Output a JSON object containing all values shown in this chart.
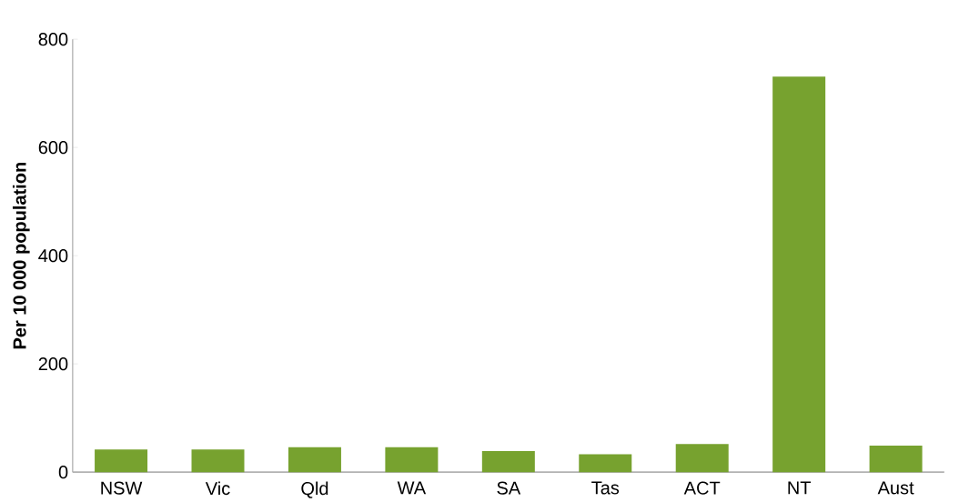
{
  "chart_data": {
    "type": "bar",
    "ylabel": "Per 10 000 population",
    "categories": [
      "NSW",
      "Vic",
      "Qld",
      "WA",
      "SA",
      "Tas",
      "ACT",
      "NT",
      "Aust"
    ],
    "values": [
      42,
      42,
      46,
      46,
      39,
      33,
      52,
      731,
      49
    ],
    "color": "#77a22f",
    "ylim": [
      0,
      800
    ],
    "yticks": [
      0,
      200,
      400,
      600,
      800
    ],
    "grid": false
  }
}
